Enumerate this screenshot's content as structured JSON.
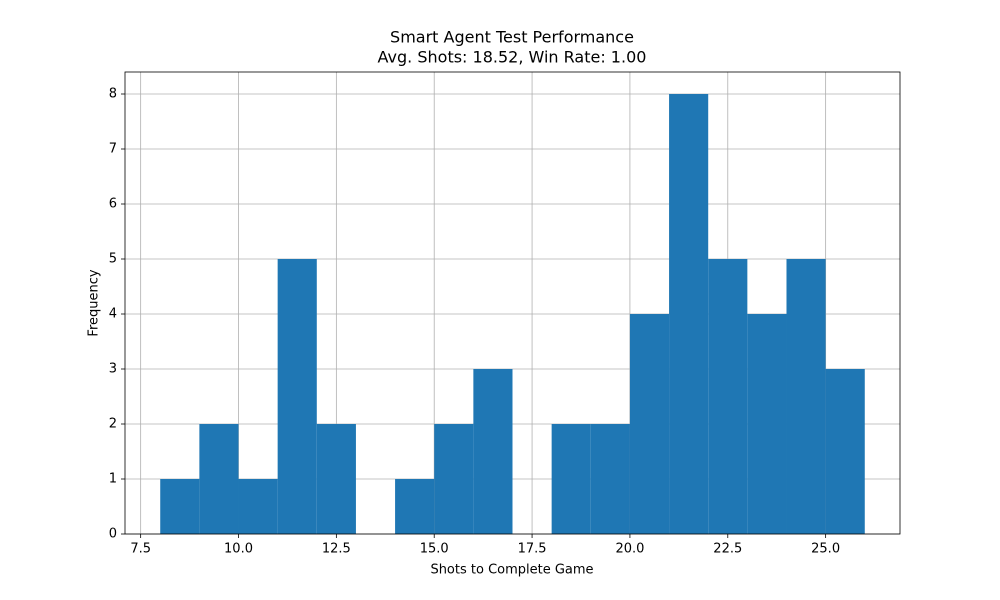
{
  "chart_data": {
    "type": "histogram",
    "title": "Smart Agent Test Performance",
    "subtitle": "Avg. Shots: 18.52, Win Rate: 1.00",
    "x_label": "Shots to Complete Game",
    "y_label": "Frequency",
    "bins": [
      8,
      9,
      10,
      11,
      12,
      13,
      14,
      15,
      16,
      17,
      18,
      19,
      20,
      21,
      22,
      23,
      24,
      25,
      26
    ],
    "counts": [
      1,
      2,
      1,
      5,
      2,
      0,
      1,
      2,
      3,
      0,
      2,
      2,
      4,
      8,
      5,
      4,
      5,
      3
    ],
    "color": "#1f77b4",
    "xlim": [
      7.1,
      26.9
    ],
    "xticks": [
      7.5,
      {
        "value": 10,
        "label": "10.0"
      },
      12.5,
      {
        "value": 15,
        "label": "15.0"
      },
      17.5,
      {
        "value": 20,
        "label": "20.0"
      },
      22.5,
      {
        "value": 25,
        "label": "25.0"
      }
    ],
    "ylim": [
      0,
      8.4
    ],
    "yticks": [
      0,
      1,
      2,
      3,
      4,
      5,
      6,
      7,
      8
    ],
    "grid": true
  }
}
